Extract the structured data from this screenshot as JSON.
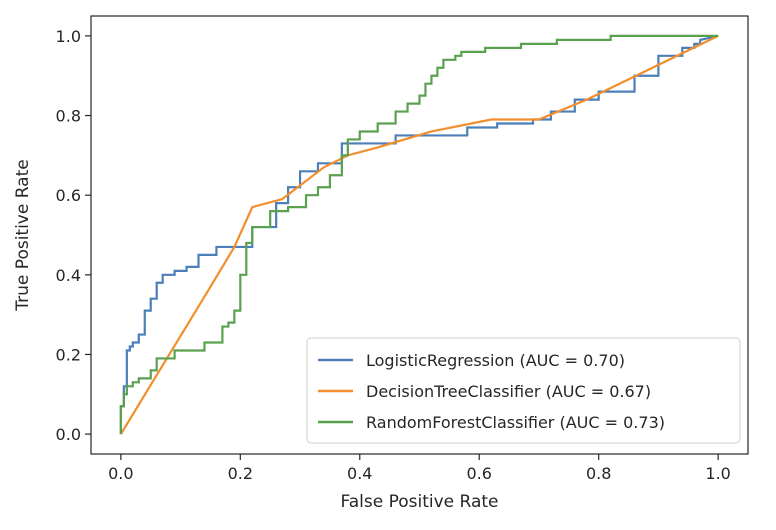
{
  "chart_data": {
    "type": "line",
    "title": "",
    "xlabel": "False Positive Rate",
    "ylabel": "True Positive Rate",
    "xlim": [
      -0.05,
      1.05
    ],
    "ylim": [
      -0.05,
      1.05
    ],
    "xticks": [
      0.0,
      0.2,
      0.4,
      0.6,
      0.8,
      1.0
    ],
    "yticks": [
      0.0,
      0.2,
      0.4,
      0.6,
      0.8,
      1.0
    ],
    "tick_labels_x": [
      "0.0",
      "0.2",
      "0.4",
      "0.6",
      "0.8",
      "1.0"
    ],
    "tick_labels_y": [
      "0.0",
      "0.2",
      "0.4",
      "0.6",
      "0.8",
      "1.0"
    ],
    "grid": false,
    "legend": "lower-right",
    "series": [
      {
        "name": "LogisticRegression (AUC = 0.70)",
        "color": "#4c7fb9",
        "x": [
          0,
          0,
          0.005,
          0.005,
          0.01,
          0.01,
          0.015,
          0.015,
          0.02,
          0.02,
          0.03,
          0.03,
          0.04,
          0.04,
          0.05,
          0.05,
          0.06,
          0.06,
          0.07,
          0.07,
          0.09,
          0.09,
          0.11,
          0.11,
          0.13,
          0.13,
          0.16,
          0.16,
          0.22,
          0.22,
          0.26,
          0.26,
          0.28,
          0.28,
          0.3,
          0.3,
          0.33,
          0.33,
          0.37,
          0.37,
          0.46,
          0.46,
          0.58,
          0.58,
          0.63,
          0.63,
          0.69,
          0.69,
          0.72,
          0.72,
          0.76,
          0.76,
          0.8,
          0.8,
          0.86,
          0.86,
          0.9,
          0.9,
          0.94,
          0.94,
          0.96,
          0.96,
          0.97,
          0.97,
          1.0
        ],
        "y": [
          0,
          0.07,
          0.07,
          0.12,
          0.12,
          0.21,
          0.21,
          0.22,
          0.22,
          0.23,
          0.23,
          0.25,
          0.25,
          0.31,
          0.31,
          0.34,
          0.34,
          0.38,
          0.38,
          0.4,
          0.4,
          0.41,
          0.41,
          0.42,
          0.42,
          0.45,
          0.45,
          0.47,
          0.47,
          0.52,
          0.52,
          0.58,
          0.58,
          0.62,
          0.62,
          0.66,
          0.66,
          0.68,
          0.68,
          0.73,
          0.73,
          0.75,
          0.75,
          0.77,
          0.77,
          0.78,
          0.78,
          0.79,
          0.79,
          0.81,
          0.81,
          0.84,
          0.84,
          0.86,
          0.86,
          0.9,
          0.9,
          0.95,
          0.95,
          0.97,
          0.97,
          0.98,
          0.98,
          0.99,
          1.0
        ]
      },
      {
        "name": "DecisionTreeClassifier (AUC = 0.67)",
        "color": "#f28e2c",
        "x": [
          0,
          0.15,
          0.19,
          0.22,
          0.27,
          0.34,
          0.38,
          0.43,
          0.52,
          0.62,
          0.7,
          0.78,
          1.0
        ],
        "y": [
          0,
          0.37,
          0.47,
          0.57,
          0.59,
          0.67,
          0.7,
          0.72,
          0.76,
          0.79,
          0.79,
          0.84,
          1.0
        ]
      },
      {
        "name": "RandomForestClassifier (AUC = 0.73)",
        "color": "#59a14f",
        "x": [
          0,
          0,
          0.005,
          0.005,
          0.01,
          0.01,
          0.02,
          0.02,
          0.03,
          0.03,
          0.05,
          0.05,
          0.06,
          0.06,
          0.09,
          0.09,
          0.14,
          0.14,
          0.17,
          0.17,
          0.18,
          0.18,
          0.19,
          0.19,
          0.2,
          0.2,
          0.21,
          0.21,
          0.22,
          0.22,
          0.25,
          0.25,
          0.28,
          0.28,
          0.31,
          0.31,
          0.33,
          0.33,
          0.35,
          0.35,
          0.37,
          0.37,
          0.38,
          0.38,
          0.4,
          0.4,
          0.43,
          0.43,
          0.46,
          0.46,
          0.48,
          0.48,
          0.5,
          0.5,
          0.51,
          0.51,
          0.52,
          0.52,
          0.53,
          0.53,
          0.54,
          0.54,
          0.56,
          0.56,
          0.57,
          0.57,
          0.61,
          0.61,
          0.67,
          0.67,
          0.73,
          0.73,
          0.82,
          0.82,
          1.0
        ],
        "y": [
          0,
          0.07,
          0.07,
          0.1,
          0.1,
          0.12,
          0.12,
          0.13,
          0.13,
          0.14,
          0.14,
          0.16,
          0.16,
          0.19,
          0.19,
          0.21,
          0.21,
          0.23,
          0.23,
          0.27,
          0.27,
          0.28,
          0.28,
          0.31,
          0.31,
          0.4,
          0.4,
          0.48,
          0.48,
          0.52,
          0.52,
          0.56,
          0.56,
          0.57,
          0.57,
          0.6,
          0.6,
          0.62,
          0.62,
          0.65,
          0.65,
          0.7,
          0.7,
          0.74,
          0.74,
          0.76,
          0.76,
          0.78,
          0.78,
          0.81,
          0.81,
          0.83,
          0.83,
          0.85,
          0.85,
          0.88,
          0.88,
          0.9,
          0.9,
          0.92,
          0.92,
          0.94,
          0.94,
          0.95,
          0.95,
          0.96,
          0.96,
          0.97,
          0.97,
          0.98,
          0.98,
          0.99,
          0.99,
          1.0,
          1.0
        ]
      }
    ]
  }
}
